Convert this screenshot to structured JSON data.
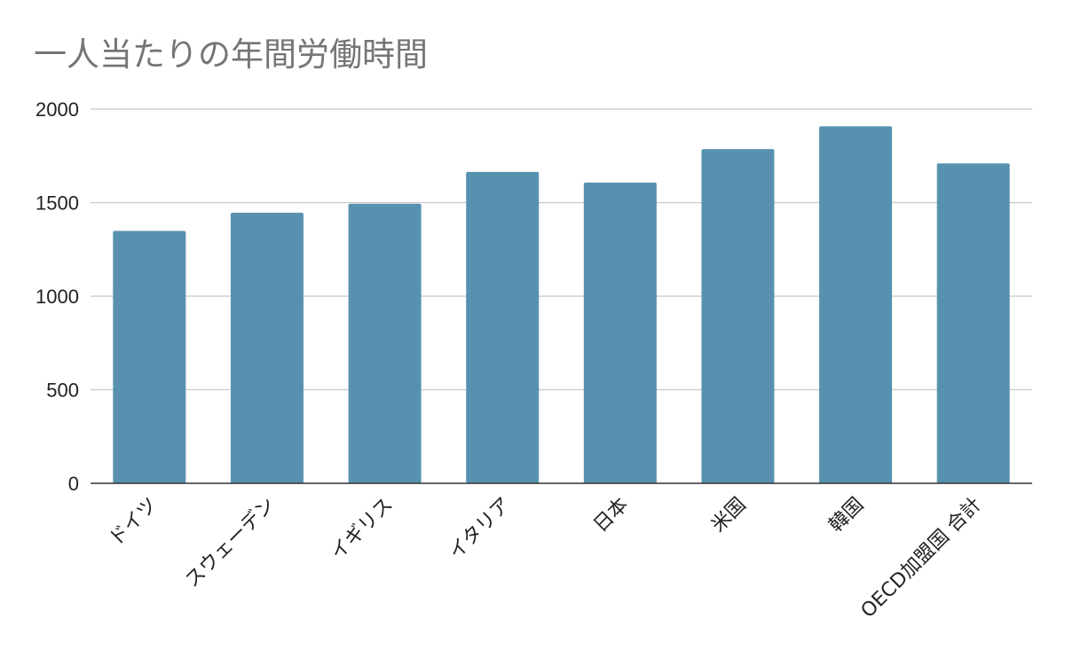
{
  "chart_data": {
    "type": "bar",
    "title": "一人当たりの年間労働時間",
    "xlabel": "",
    "ylabel": "",
    "categories": [
      "ドイツ",
      "スウェーデン",
      "イギリス",
      "イタリア",
      "日本",
      "米国",
      "韓国",
      "OECD加盟国 合計"
    ],
    "values": [
      1349,
      1446,
      1494,
      1664,
      1607,
      1786,
      1908,
      1710
    ],
    "ylim": [
      0,
      2000
    ],
    "yticks": [
      "0",
      "500",
      "1000",
      "1500",
      "2000"
    ],
    "grid": true,
    "legend": "none",
    "bar_color": "#5891b0"
  }
}
